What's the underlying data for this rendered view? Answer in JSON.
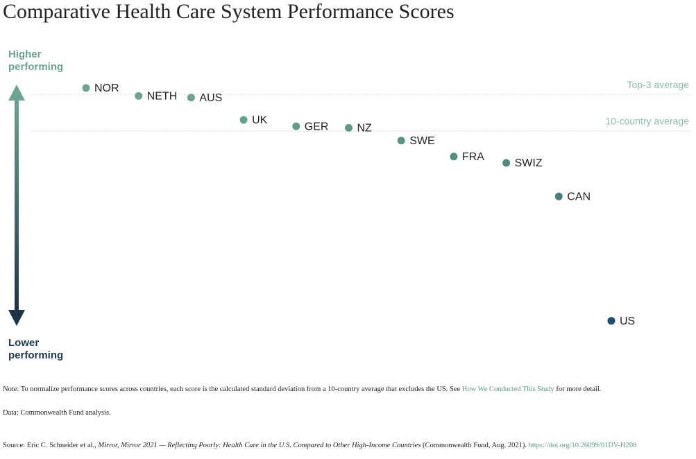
{
  "chart_data": {
    "type": "dot",
    "title": "Comparative Health Care System Performance Scores",
    "axis_top_label": "Higher performing",
    "axis_bottom_label": "Lower performing",
    "categories": [
      "NOR",
      "NETH",
      "AUS",
      "UK",
      "GER",
      "NZ",
      "SWE",
      "FRA",
      "SWIZ",
      "CAN",
      "US"
    ],
    "values": [
      0.27,
      0.22,
      0.21,
      0.07,
      0.03,
      0.02,
      -0.06,
      -0.16,
      -0.2,
      -0.41,
      -1.19
    ],
    "colors": [
      "#6ba58f",
      "#6ba58f",
      "#6ba58f",
      "#63a08b",
      "#5f9b88",
      "#5e9a87",
      "#5a9584",
      "#559082",
      "#4f8a7e",
      "#47807a",
      "#1d4f6e"
    ],
    "ylim": [
      -1.4,
      0.4
    ],
    "reference_lines": [
      {
        "label": "Top-3 average",
        "value": 0.23
      },
      {
        "label": "10-country average",
        "value": 0
      }
    ],
    "note": {
      "before": "Note: To normalize performance scores across countries, each score is the calculated standard deviation from a 10-country average that excludes the US. See",
      "link": "How We Conducted This Study",
      "after": "for more detail."
    },
    "data_source": "Data: Commonwealth Fund analysis.",
    "source": [
      {
        "text": "Source: Eric C. Schneider et al.,",
        "style": "normal"
      },
      {
        "text": "Mirror, Mirror 2021 — Reflecting Poorly: Health Care in the U.S. Compared to Other High-Income Countries",
        "style": "italic"
      },
      {
        "text": "(Commonwealth Fund, Aug. 2021).",
        "style": "normal"
      },
      {
        "text": "https://doi.org/10.26099/01DV-H208",
        "style": "link"
      }
    ]
  }
}
